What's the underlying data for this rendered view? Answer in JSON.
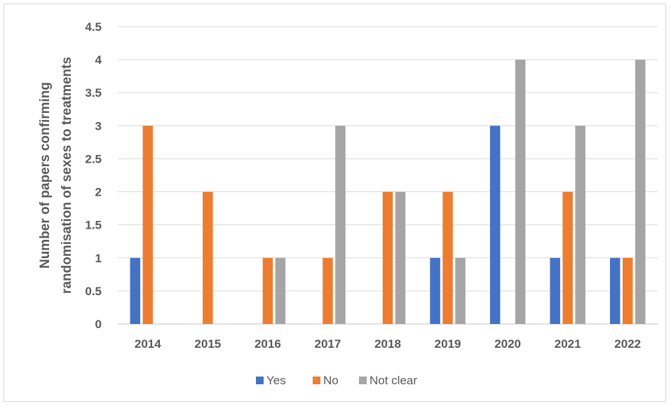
{
  "chart_data": {
    "type": "bar",
    "title": "",
    "xlabel": "",
    "ylabel": "Number of papers confirming randomisation of sexes to treatments",
    "ylabel_lines": [
      "Number of papers confirming",
      "randomisation of sexes to treatments"
    ],
    "categories": [
      "2014",
      "2015",
      "2016",
      "2017",
      "2018",
      "2019",
      "2020",
      "2021",
      "2022"
    ],
    "series": [
      {
        "name": "Yes",
        "color": "#4472c4",
        "values": [
          1,
          0,
          0,
          0,
          0,
          1,
          3,
          1,
          1
        ]
      },
      {
        "name": "No",
        "color": "#ed7d31",
        "values": [
          3,
          2,
          1,
          1,
          2,
          2,
          0,
          2,
          1
        ]
      },
      {
        "name": "Not clear",
        "color": "#a5a5a5",
        "values": [
          0,
          0,
          1,
          3,
          2,
          1,
          4,
          3,
          4
        ]
      }
    ],
    "ylim": [
      0,
      4.5
    ],
    "yticks": [
      "0",
      "0.5",
      "1",
      "1.5",
      "2",
      "2.5",
      "3",
      "3.5",
      "4",
      "4.5"
    ],
    "grid": true,
    "legend_position": "bottom"
  }
}
